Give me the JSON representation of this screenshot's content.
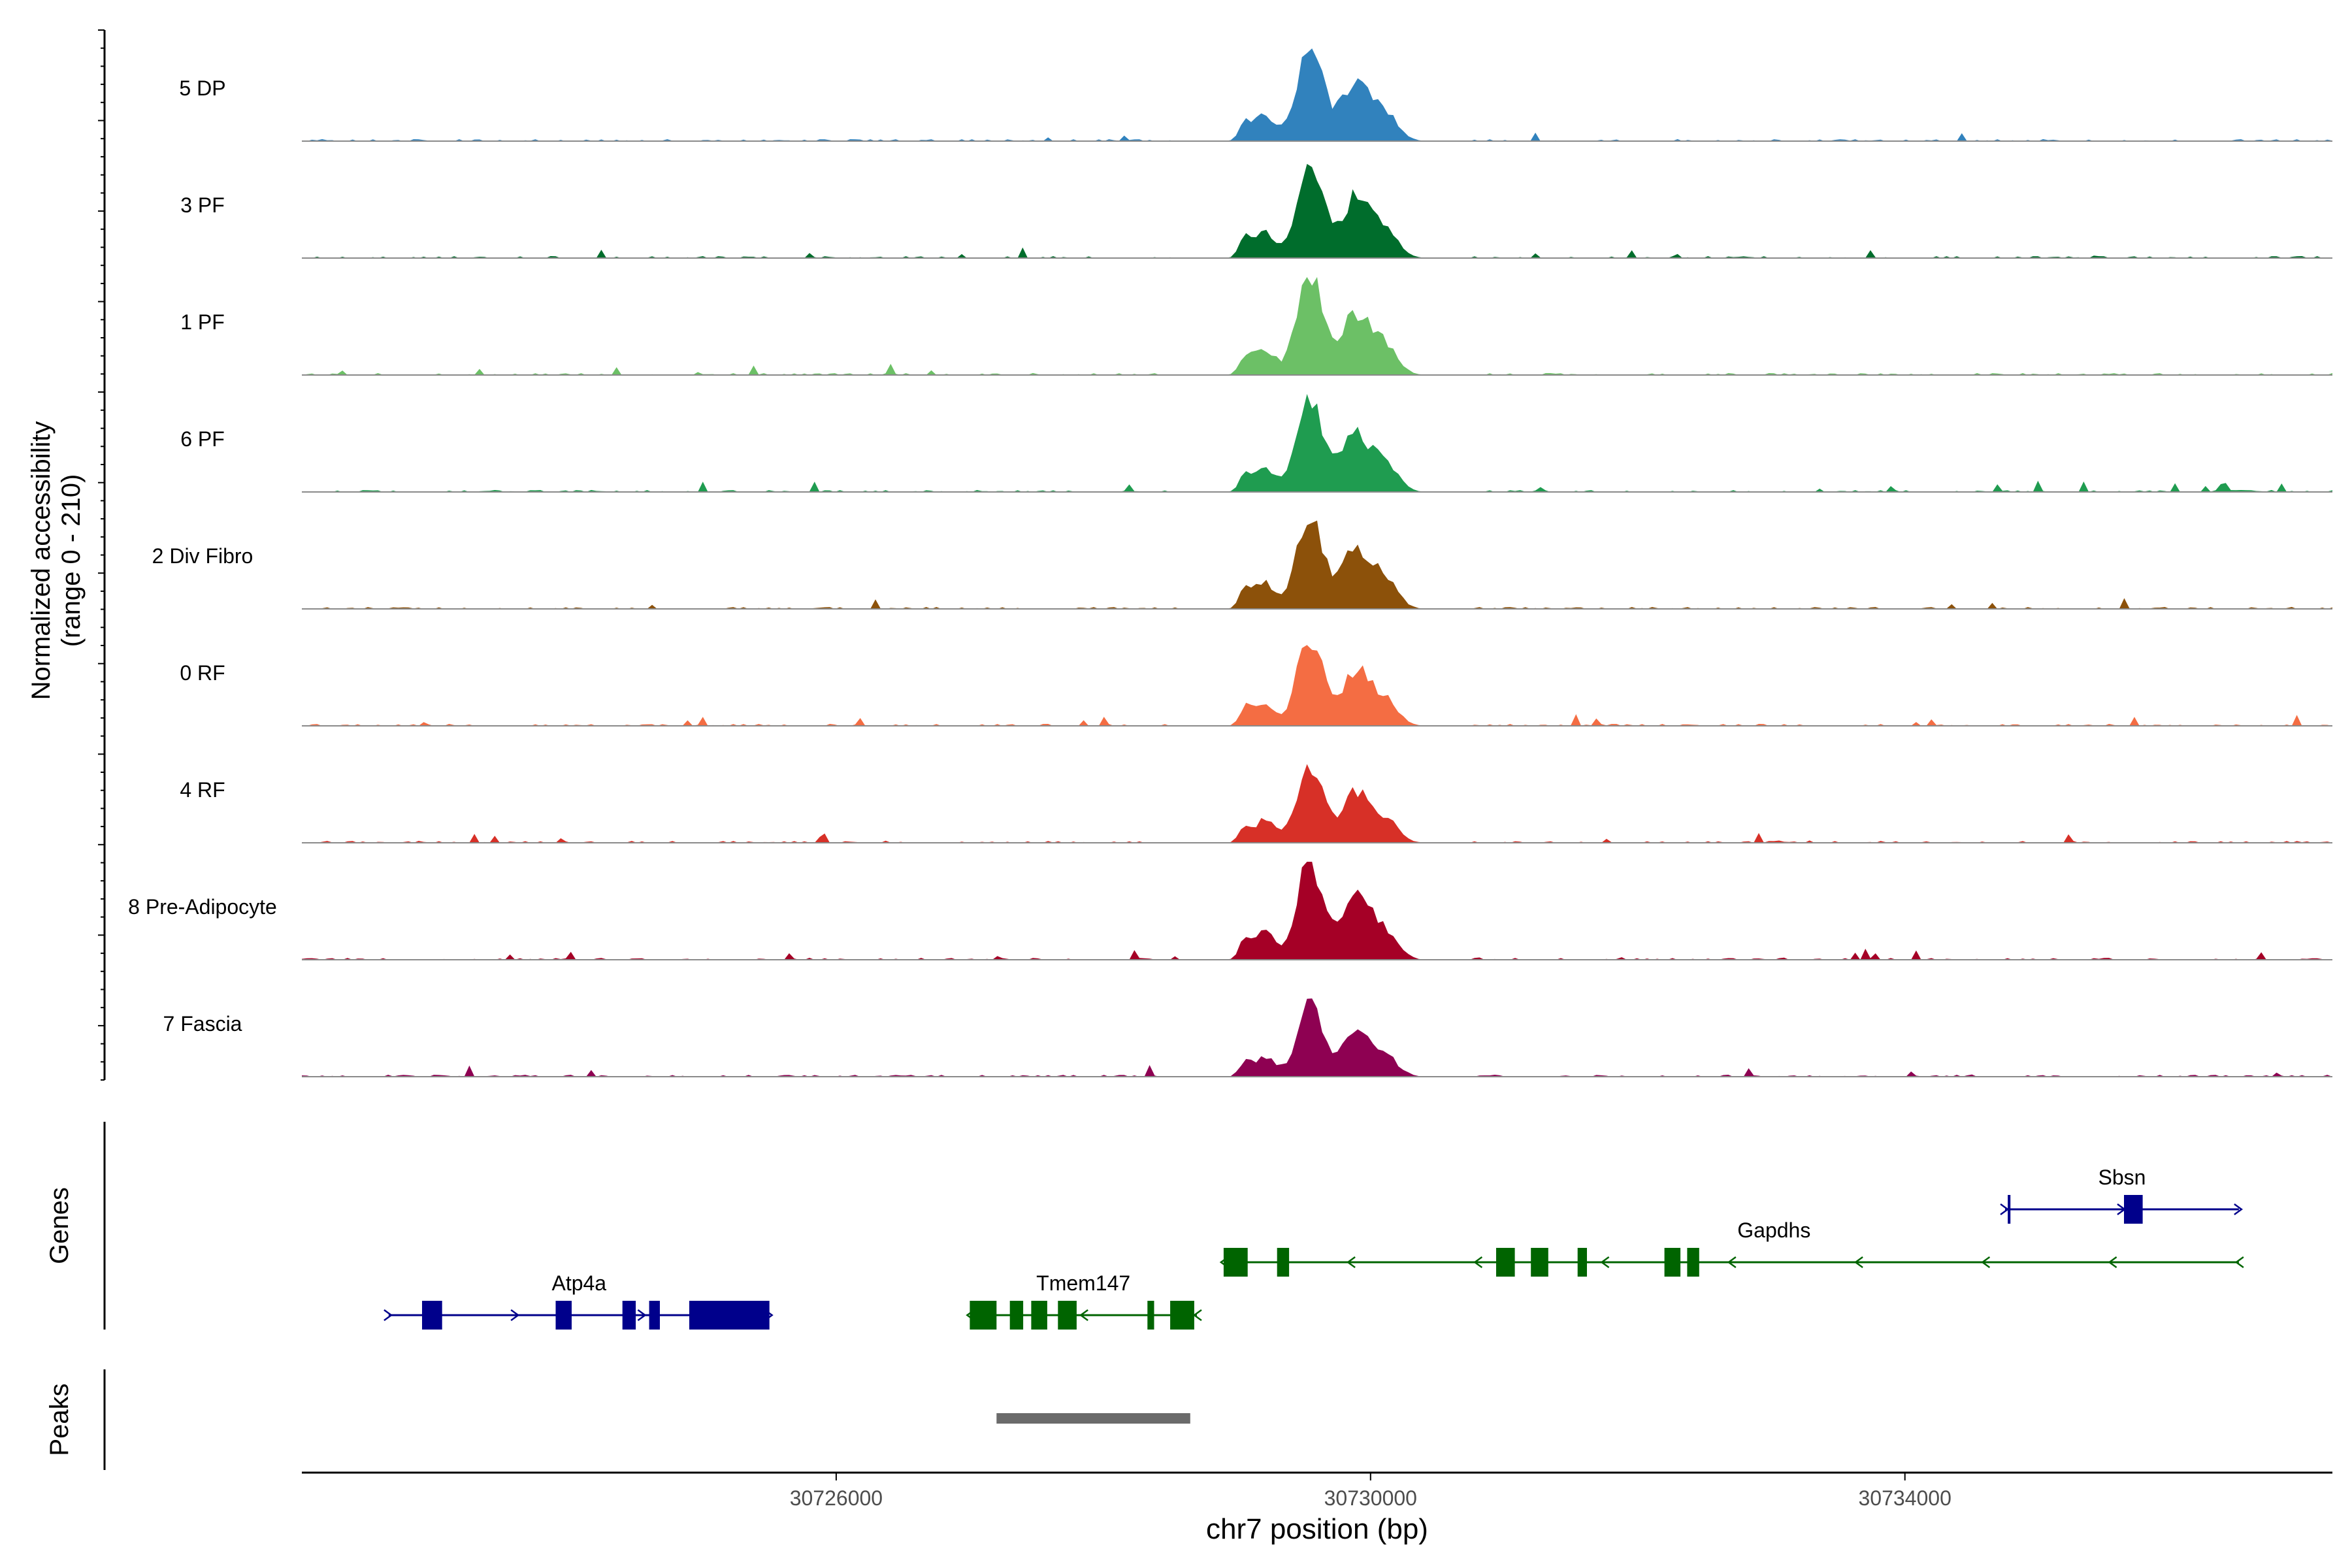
{
  "chart_data": {
    "type": "area",
    "tracks": [
      {
        "name": "5 DP",
        "color": "#3182bd",
        "amp": 1.0,
        "noise": 0.03
      },
      {
        "name": "3 PF",
        "color": "#006d2c",
        "amp": 1.0,
        "noise": 0.06
      },
      {
        "name": "1 PF",
        "color": "#6cc066",
        "amp": 1.0,
        "noise": 0.04
      },
      {
        "name": "6 PF",
        "color": "#1f9c50",
        "amp": 0.95,
        "noise": 0.06
      },
      {
        "name": "2 Div Fibro",
        "color": "#8c510a",
        "amp": 1.0,
        "noise": 0.05
      },
      {
        "name": "0 RF",
        "color": "#f46d43",
        "amp": 0.9,
        "noise": 0.05
      },
      {
        "name": "4 RF",
        "color": "#d73027",
        "amp": 0.82,
        "noise": 0.06
      },
      {
        "name": "8 Pre-Adipocyte",
        "color": "#a50026",
        "amp": 1.0,
        "noise": 0.1
      },
      {
        "name": "7 Fascia",
        "color": "#8e0152",
        "amp": 0.72,
        "noise": 0.05
      }
    ],
    "peak_region": [
      30729000,
      30729850
    ],
    "ylabel_line1": "Normalized accessibility",
    "ylabel_line2": "(range 0 - 210)",
    "xlabel": "chr7 position (bp)",
    "xlim": [
      30722000,
      30737200
    ],
    "xticks": [
      30726000,
      30730000,
      30734000
    ],
    "xtick_labels": [
      "30726000",
      "30730000",
      "30734000"
    ],
    "genes_label": "Genes",
    "peaks_label": "Peaks",
    "peaks": [
      {
        "start": 30727200,
        "end": 30728650
      }
    ],
    "genes": [
      {
        "name": "Atp4a",
        "strand": "+",
        "color": "#00008b",
        "start": 30722650,
        "end": 30725500,
        "row": 3,
        "exons": [
          [
            30722900,
            30723050
          ],
          [
            30723900,
            30724020
          ],
          [
            30724400,
            30724500
          ],
          [
            30724600,
            30724680
          ],
          [
            30724900,
            30725500
          ]
        ]
      },
      {
        "name": "Tmem147",
        "strand": "-",
        "color": "#006400",
        "start": 30727000,
        "end": 30728700,
        "row": 3,
        "exons": [
          [
            30727000,
            30727200
          ],
          [
            30727300,
            30727400
          ],
          [
            30727460,
            30727580
          ],
          [
            30727660,
            30727800
          ],
          [
            30728330,
            30728380
          ],
          [
            30728500,
            30728680
          ]
        ]
      },
      {
        "name": "Gapdhs",
        "strand": "-",
        "color": "#006400",
        "start": 30728900,
        "end": 30736500,
        "row": 2,
        "label_pos": 30733020,
        "exons": [
          [
            30728900,
            30729080
          ],
          [
            30729300,
            30729390
          ],
          [
            30730940,
            30731080
          ],
          [
            30731200,
            30731330
          ],
          [
            30731550,
            30731620
          ],
          [
            30732200,
            30732320
          ],
          [
            30732370,
            30732460
          ]
        ]
      },
      {
        "name": "Sbsn",
        "strand": "+",
        "color": "#00008b",
        "start": 30734750,
        "end": 30736500,
        "row": 1,
        "exons": [
          [
            30734770,
            30734790
          ],
          [
            30735640,
            30735780
          ]
        ]
      }
    ]
  }
}
